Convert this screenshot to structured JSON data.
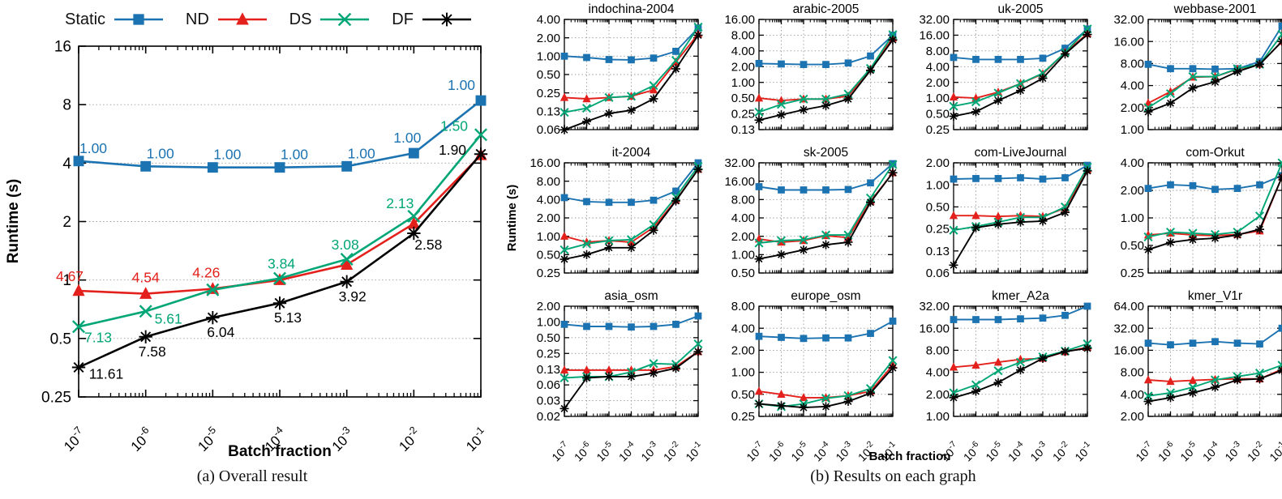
{
  "figure": {
    "colors": {
      "static": "#1c73b1",
      "nd": "#e3201b",
      "ds": "#00a676",
      "df": "#000000",
      "grid": "#9a9a9a",
      "axis": "#000000"
    },
    "legend": [
      {
        "label": "Static",
        "marker": "square",
        "color": "#1c73b1"
      },
      {
        "label": "ND",
        "marker": "triangle",
        "color": "#e3201b"
      },
      {
        "label": "DS",
        "marker": "x",
        "color": "#00a676"
      },
      {
        "label": "DF",
        "marker": "asterisk",
        "color": "#000000"
      }
    ],
    "panel_a": {
      "caption": "(a) Overall result",
      "ylabel": "Runtime (s)",
      "xlabel": "Batch fraction"
    },
    "panel_b": {
      "caption": "(b) Results on each graph",
      "ylabel": "Runtime (s)",
      "xlabel": "Batch fraction",
      "x_tick_labels": [
        "10^-7",
        "10^-6",
        "10^-5",
        "10^-4",
        "10^-3",
        "10^-2",
        "10^-1"
      ]
    }
  },
  "chart_data": [
    {
      "id": "overall",
      "type": "line",
      "title": "",
      "xlabel": "Batch fraction",
      "ylabel": "Runtime (s)",
      "xscale": "log10",
      "yscale": "log2",
      "grid": "horizontal-dotted",
      "legend_position": "top",
      "x_tick_labels": [
        "10^-7",
        "10^-6",
        "10^-5",
        "10^-4",
        "10^-3",
        "10^-2",
        "10^-1"
      ],
      "y_ticks": [
        "16",
        "8",
        "4",
        "2",
        "1",
        "0.5",
        "0.25"
      ],
      "ylim": [
        0.25,
        16
      ],
      "series": [
        {
          "name": "Static",
          "values": [
            4.1,
            3.85,
            3.8,
            3.8,
            3.85,
            4.5,
            8.4
          ],
          "point_labels": [
            "1.00",
            "1.00",
            "1.00",
            "1.00",
            "1.00",
            "1.00",
            "1.00"
          ]
        },
        {
          "name": "ND",
          "values": [
            0.88,
            0.85,
            0.9,
            1.0,
            1.2,
            1.95,
            4.4
          ],
          "point_labels": [
            "4.67",
            "4.54",
            "4.26",
            null,
            null,
            null,
            null
          ]
        },
        {
          "name": "DS",
          "values": [
            0.575,
            0.69,
            0.89,
            1.02,
            1.28,
            2.13,
            5.6
          ],
          "point_labels": [
            "7.13",
            "5.61",
            null,
            "3.84",
            "3.08",
            "2.13",
            "1.50"
          ]
        },
        {
          "name": "DF",
          "values": [
            0.355,
            0.51,
            0.64,
            0.76,
            0.98,
            1.74,
            4.45
          ],
          "point_labels": [
            "11.61",
            "7.58",
            "6.04",
            "5.13",
            "3.92",
            "2.58",
            "1.90"
          ]
        }
      ]
    },
    {
      "id": "indochina-2004",
      "type": "line",
      "title": "indochina-2004",
      "ylim": [
        0.0625,
        4
      ],
      "y_ticks": [
        "4.00",
        "2.00",
        "1.00",
        "0.50",
        "0.25",
        "0.13",
        "0.06"
      ],
      "series": [
        {
          "name": "Static",
          "values": [
            1.0,
            0.95,
            0.88,
            0.87,
            0.93,
            1.2,
            2.9
          ]
        },
        {
          "name": "ND",
          "values": [
            0.21,
            0.2,
            0.21,
            0.22,
            0.28,
            0.8,
            2.3
          ]
        },
        {
          "name": "DS",
          "values": [
            0.12,
            0.14,
            0.21,
            0.22,
            0.33,
            0.85,
            3.0
          ]
        },
        {
          "name": "DF",
          "values": [
            0.062,
            0.085,
            0.115,
            0.13,
            0.2,
            0.62,
            2.2
          ]
        }
      ]
    },
    {
      "id": "arabic-2005",
      "type": "line",
      "title": "arabic-2005",
      "ylim": [
        0.125,
        16
      ],
      "y_ticks": [
        "16.00",
        "8.00",
        "4.00",
        "2.00",
        "1.00",
        "0.50",
        "0.25",
        "0.13"
      ],
      "series": [
        {
          "name": "Static",
          "values": [
            2.3,
            2.25,
            2.2,
            2.2,
            2.35,
            3.2,
            8.0
          ]
        },
        {
          "name": "ND",
          "values": [
            0.5,
            0.45,
            0.48,
            0.48,
            0.55,
            1.8,
            7.0
          ]
        },
        {
          "name": "DS",
          "values": [
            0.27,
            0.38,
            0.48,
            0.48,
            0.6,
            1.85,
            8.2
          ]
        },
        {
          "name": "DF",
          "values": [
            0.19,
            0.24,
            0.3,
            0.36,
            0.48,
            1.7,
            6.5
          ]
        }
      ]
    },
    {
      "id": "uk-2005",
      "type": "line",
      "title": "uk-2005",
      "ylim": [
        0.25,
        32
      ],
      "y_ticks": [
        "32.00",
        "16.00",
        "8.00",
        "4.00",
        "2.00",
        "1.00",
        "0.50",
        "0.25"
      ],
      "series": [
        {
          "name": "Static",
          "values": [
            6.0,
            5.5,
            5.5,
            5.5,
            5.8,
            9.0,
            21.0
          ]
        },
        {
          "name": "ND",
          "values": [
            1.05,
            1.0,
            1.3,
            1.9,
            2.9,
            7.5,
            17.0
          ]
        },
        {
          "name": "DS",
          "values": [
            0.7,
            0.85,
            1.25,
            1.9,
            3.0,
            7.5,
            21.0
          ]
        },
        {
          "name": "DF",
          "values": [
            0.45,
            0.55,
            0.9,
            1.4,
            2.4,
            7.0,
            16.5
          ]
        }
      ]
    },
    {
      "id": "webbase-2001",
      "type": "line",
      "title": "webbase-2001",
      "ylim": [
        1,
        32
      ],
      "y_ticks": [
        "32.00",
        "16.00",
        "8.00",
        "4.00",
        "2.00",
        "1.00"
      ],
      "series": [
        {
          "name": "Static",
          "values": [
            7.8,
            6.8,
            6.8,
            6.7,
            6.8,
            8.5,
            26.0
          ]
        },
        {
          "name": "ND",
          "values": [
            2.3,
            3.3,
            5.2,
            5.3,
            6.7,
            7.8,
            16.0
          ]
        },
        {
          "name": "DS",
          "values": [
            2.0,
            3.1,
            5.3,
            5.3,
            6.8,
            7.8,
            20.0
          ]
        },
        {
          "name": "DF",
          "values": [
            1.75,
            2.3,
            3.7,
            4.5,
            6.2,
            7.8,
            16.0
          ]
        }
      ]
    },
    {
      "id": "it-2004",
      "type": "line",
      "title": "it-2004",
      "ylim": [
        0.25,
        16
      ],
      "y_ticks": [
        "16.00",
        "8.00",
        "4.00",
        "2.00",
        "1.00",
        "0.50",
        "0.25"
      ],
      "series": [
        {
          "name": "Static",
          "values": [
            4.3,
            3.7,
            3.6,
            3.6,
            3.9,
            5.5,
            16.0
          ]
        },
        {
          "name": "ND",
          "values": [
            1.0,
            0.8,
            0.85,
            0.8,
            1.4,
            3.9,
            12.5
          ]
        },
        {
          "name": "DS",
          "values": [
            0.6,
            0.75,
            0.85,
            0.88,
            1.55,
            4.4,
            14.0
          ]
        },
        {
          "name": "DF",
          "values": [
            0.42,
            0.5,
            0.65,
            0.65,
            1.25,
            3.8,
            12.5
          ]
        }
      ]
    },
    {
      "id": "sk-2005",
      "type": "line",
      "title": "sk-2005",
      "ylim": [
        0.5,
        32
      ],
      "y_ticks": [
        "32.00",
        "16.00",
        "8.00",
        "4.00",
        "2.00",
        "1.00",
        "0.50"
      ],
      "series": [
        {
          "name": "Static",
          "values": [
            13.0,
            11.5,
            11.5,
            11.5,
            11.7,
            15.0,
            31.0
          ]
        },
        {
          "name": "ND",
          "values": [
            1.8,
            1.6,
            1.7,
            2.05,
            1.9,
            7.5,
            22.0
          ]
        },
        {
          "name": "DS",
          "values": [
            1.55,
            1.7,
            1.75,
            2.1,
            2.1,
            8.5,
            30.0
          ]
        },
        {
          "name": "DF",
          "values": [
            0.85,
            1.0,
            1.2,
            1.45,
            1.6,
            7.2,
            22.0
          ]
        }
      ]
    },
    {
      "id": "com-LiveJournal",
      "type": "line",
      "title": "com-LiveJournal",
      "ylim": [
        0.0625,
        2
      ],
      "y_ticks": [
        "2.00",
        "1.00",
        "0.50",
        "0.25",
        "0.13",
        "0.06"
      ],
      "series": [
        {
          "name": "Static",
          "values": [
            1.2,
            1.22,
            1.22,
            1.25,
            1.2,
            1.25,
            1.85
          ]
        },
        {
          "name": "ND",
          "values": [
            0.38,
            0.38,
            0.37,
            0.38,
            0.37,
            0.48,
            1.6
          ]
        },
        {
          "name": "DS",
          "values": [
            0.24,
            0.27,
            0.31,
            0.36,
            0.36,
            0.5,
            1.75
          ]
        },
        {
          "name": "DF",
          "values": [
            0.08,
            0.26,
            0.29,
            0.31,
            0.32,
            0.42,
            1.55
          ]
        }
      ]
    },
    {
      "id": "com-Orkut",
      "type": "line",
      "title": "com-Orkut",
      "ylim": [
        0.25,
        4
      ],
      "y_ticks": [
        "4.00",
        "2.00",
        "1.00",
        "0.50",
        "0.25"
      ],
      "series": [
        {
          "name": "Static",
          "values": [
            2.1,
            2.3,
            2.25,
            2.05,
            2.1,
            2.3,
            2.9
          ]
        },
        {
          "name": "ND",
          "values": [
            0.65,
            0.68,
            0.65,
            0.64,
            0.66,
            0.72,
            2.8
          ]
        },
        {
          "name": "DS",
          "values": [
            0.62,
            0.7,
            0.68,
            0.66,
            0.7,
            1.05,
            4.0
          ]
        },
        {
          "name": "DF",
          "values": [
            0.45,
            0.54,
            0.58,
            0.6,
            0.65,
            0.75,
            2.8
          ]
        }
      ]
    },
    {
      "id": "asia_osm",
      "type": "line",
      "title": "asia_osm",
      "ylim": [
        0.015625,
        2
      ],
      "y_ticks": [
        "2.00",
        "1.00",
        "0.50",
        "0.25",
        "0.13",
        "0.06",
        "0.03",
        "0.02"
      ],
      "series": [
        {
          "name": "Static",
          "values": [
            0.9,
            0.82,
            0.82,
            0.8,
            0.82,
            0.9,
            1.3
          ]
        },
        {
          "name": "ND",
          "values": [
            0.12,
            0.12,
            0.12,
            0.12,
            0.12,
            0.14,
            0.27
          ]
        },
        {
          "name": "DS",
          "values": [
            0.085,
            0.09,
            0.09,
            0.11,
            0.16,
            0.155,
            0.38
          ]
        },
        {
          "name": "DF",
          "values": [
            0.022,
            0.085,
            0.09,
            0.09,
            0.105,
            0.13,
            0.27
          ]
        }
      ]
    },
    {
      "id": "europe_osm",
      "type": "line",
      "title": "europe_osm",
      "ylim": [
        0.25,
        8
      ],
      "y_ticks": [
        "8.00",
        "4.00",
        "2.00",
        "1.00",
        "0.50",
        "0.25"
      ],
      "series": [
        {
          "name": "Static",
          "values": [
            3.1,
            3.0,
            2.9,
            2.95,
            2.95,
            3.4,
            5.0
          ]
        },
        {
          "name": "ND",
          "values": [
            0.55,
            0.5,
            0.45,
            0.45,
            0.48,
            0.55,
            1.25
          ]
        },
        {
          "name": "DS",
          "values": [
            0.37,
            0.34,
            0.37,
            0.44,
            0.48,
            0.6,
            1.45
          ]
        },
        {
          "name": "DF",
          "values": [
            0.37,
            0.35,
            0.33,
            0.34,
            0.4,
            0.52,
            1.15
          ]
        }
      ]
    },
    {
      "id": "kmer_A2a",
      "type": "line",
      "title": "kmer_A2a",
      "ylim": [
        1,
        32
      ],
      "y_ticks": [
        "32.00",
        "16.00",
        "8.00",
        "4.00",
        "2.00",
        "1.00"
      ],
      "series": [
        {
          "name": "Static",
          "values": [
            21,
            21,
            21,
            21.5,
            22,
            24,
            32
          ]
        },
        {
          "name": "ND",
          "values": [
            4.7,
            5.0,
            5.5,
            6.0,
            6.2,
            7.6,
            8.8
          ]
        },
        {
          "name": "DS",
          "values": [
            2.1,
            2.7,
            4.2,
            5.5,
            6.5,
            7.8,
            9.8
          ]
        },
        {
          "name": "DF",
          "values": [
            1.8,
            2.2,
            2.9,
            4.3,
            6.2,
            7.7,
            8.5
          ]
        }
      ]
    },
    {
      "id": "kmer_V1r",
      "type": "line",
      "title": "kmer_V1r",
      "ylim": [
        2,
        64
      ],
      "y_ticks": [
        "64.00",
        "32.00",
        "16.00",
        "8.00",
        "4.00",
        "2.00"
      ],
      "series": [
        {
          "name": "Static",
          "values": [
            20,
            19,
            20,
            21,
            20,
            19.5,
            32
          ]
        },
        {
          "name": "ND",
          "values": [
            6.3,
            6.0,
            6.2,
            6.4,
            6.5,
            6.5,
            8.8
          ]
        },
        {
          "name": "DS",
          "values": [
            3.8,
            4.2,
            5.0,
            6.3,
            7.0,
            7.8,
            10.0
          ]
        },
        {
          "name": "DF",
          "values": [
            3.2,
            3.6,
            4.2,
            5.0,
            6.3,
            6.5,
            8.5
          ]
        }
      ]
    }
  ]
}
